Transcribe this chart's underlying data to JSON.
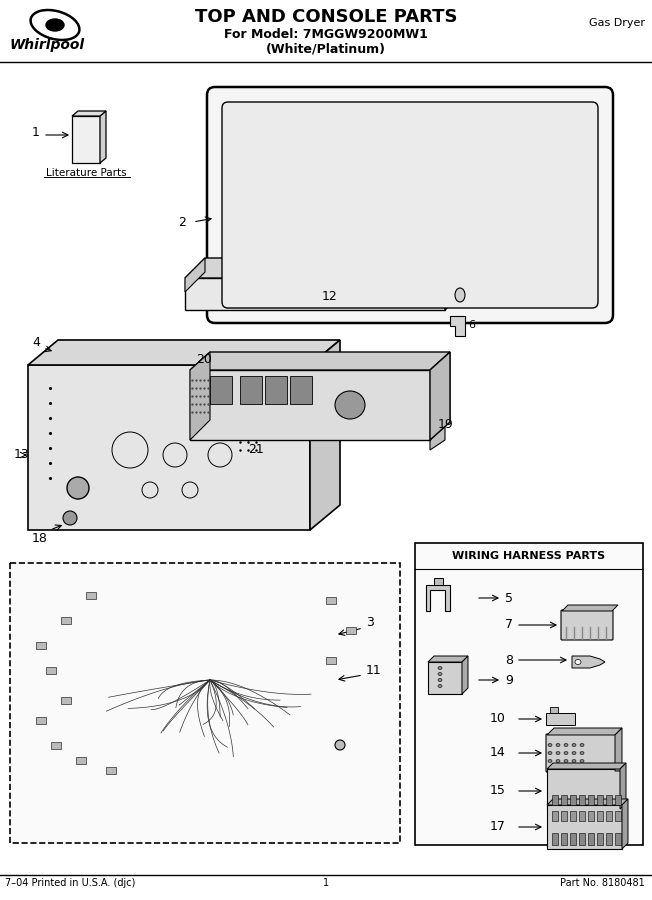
{
  "title": "TOP AND CONSOLE PARTS",
  "subtitle1": "For Model: 7MGGW9200MW1",
  "subtitle2": "(White/Platinum)",
  "top_right_label": "Gas Dryer",
  "footer_left": "7–04 Printed in U.S.A. (djc)",
  "footer_center": "1",
  "footer_right": "Part No. 8180481",
  "wiring_box_title": "WIRING HARNESS PARTS",
  "bg_color": "#ffffff",
  "line_color": "#000000",
  "literature_parts_label": "Literature Parts",
  "fig_w": 6.52,
  "fig_h": 9.0,
  "dpi": 100
}
